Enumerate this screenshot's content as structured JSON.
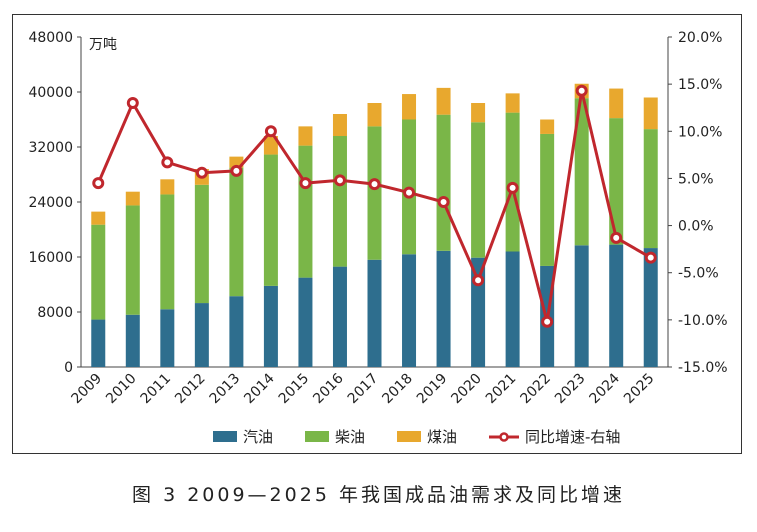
{
  "caption": "图 3  2009—2025 年我国成品油需求及同比增速",
  "chart_data": {
    "type": "bar",
    "stacked": true,
    "unit_label": "万吨",
    "categories": [
      "2009",
      "2010",
      "2011",
      "2012",
      "2013",
      "2014",
      "2015",
      "2016",
      "2017",
      "2018",
      "2019",
      "2020",
      "2021",
      "2022",
      "2023",
      "2024",
      "2025"
    ],
    "series": [
      {
        "name": "汽油",
        "color": "#2e6e8e",
        "values": [
          6900,
          7600,
          8400,
          9300,
          10300,
          11800,
          13000,
          14600,
          15600,
          16400,
          16900,
          15900,
          16800,
          14700,
          17700,
          17800,
          17300
        ]
      },
      {
        "name": "柴油",
        "color": "#7ab648",
        "values": [
          13800,
          15900,
          16700,
          17200,
          18700,
          19100,
          19200,
          19000,
          19400,
          19600,
          19800,
          19700,
          20200,
          19200,
          21400,
          18400,
          17300
        ]
      },
      {
        "name": "煤油",
        "color": "#e8a82e",
        "values": [
          1900,
          2000,
          2200,
          2300,
          1600,
          2700,
          2800,
          3200,
          3400,
          3700,
          3900,
          2800,
          2800,
          2100,
          2100,
          4300,
          4600
        ]
      }
    ],
    "line_series": {
      "name": "同比增速-右轴",
      "color": "#c0272d",
      "axis": "right",
      "values": [
        4.5,
        13.0,
        6.7,
        5.6,
        5.8,
        10.0,
        4.5,
        4.8,
        4.4,
        3.5,
        2.5,
        -5.8,
        4.0,
        -10.2,
        14.3,
        -1.3,
        -3.4
      ]
    },
    "ylim": [
      0,
      48000
    ],
    "yticks": [
      "0",
      "8000",
      "16000",
      "24000",
      "32000",
      "40000",
      "48000"
    ],
    "y2lim": [
      -15,
      20
    ],
    "y2ticks": [
      "-15.0%",
      "-10.0%",
      "-5.0%",
      "0.0%",
      "5.0%",
      "10.0%",
      "15.0%",
      "20.0%"
    ],
    "legend_position": "bottom",
    "grid": false
  }
}
